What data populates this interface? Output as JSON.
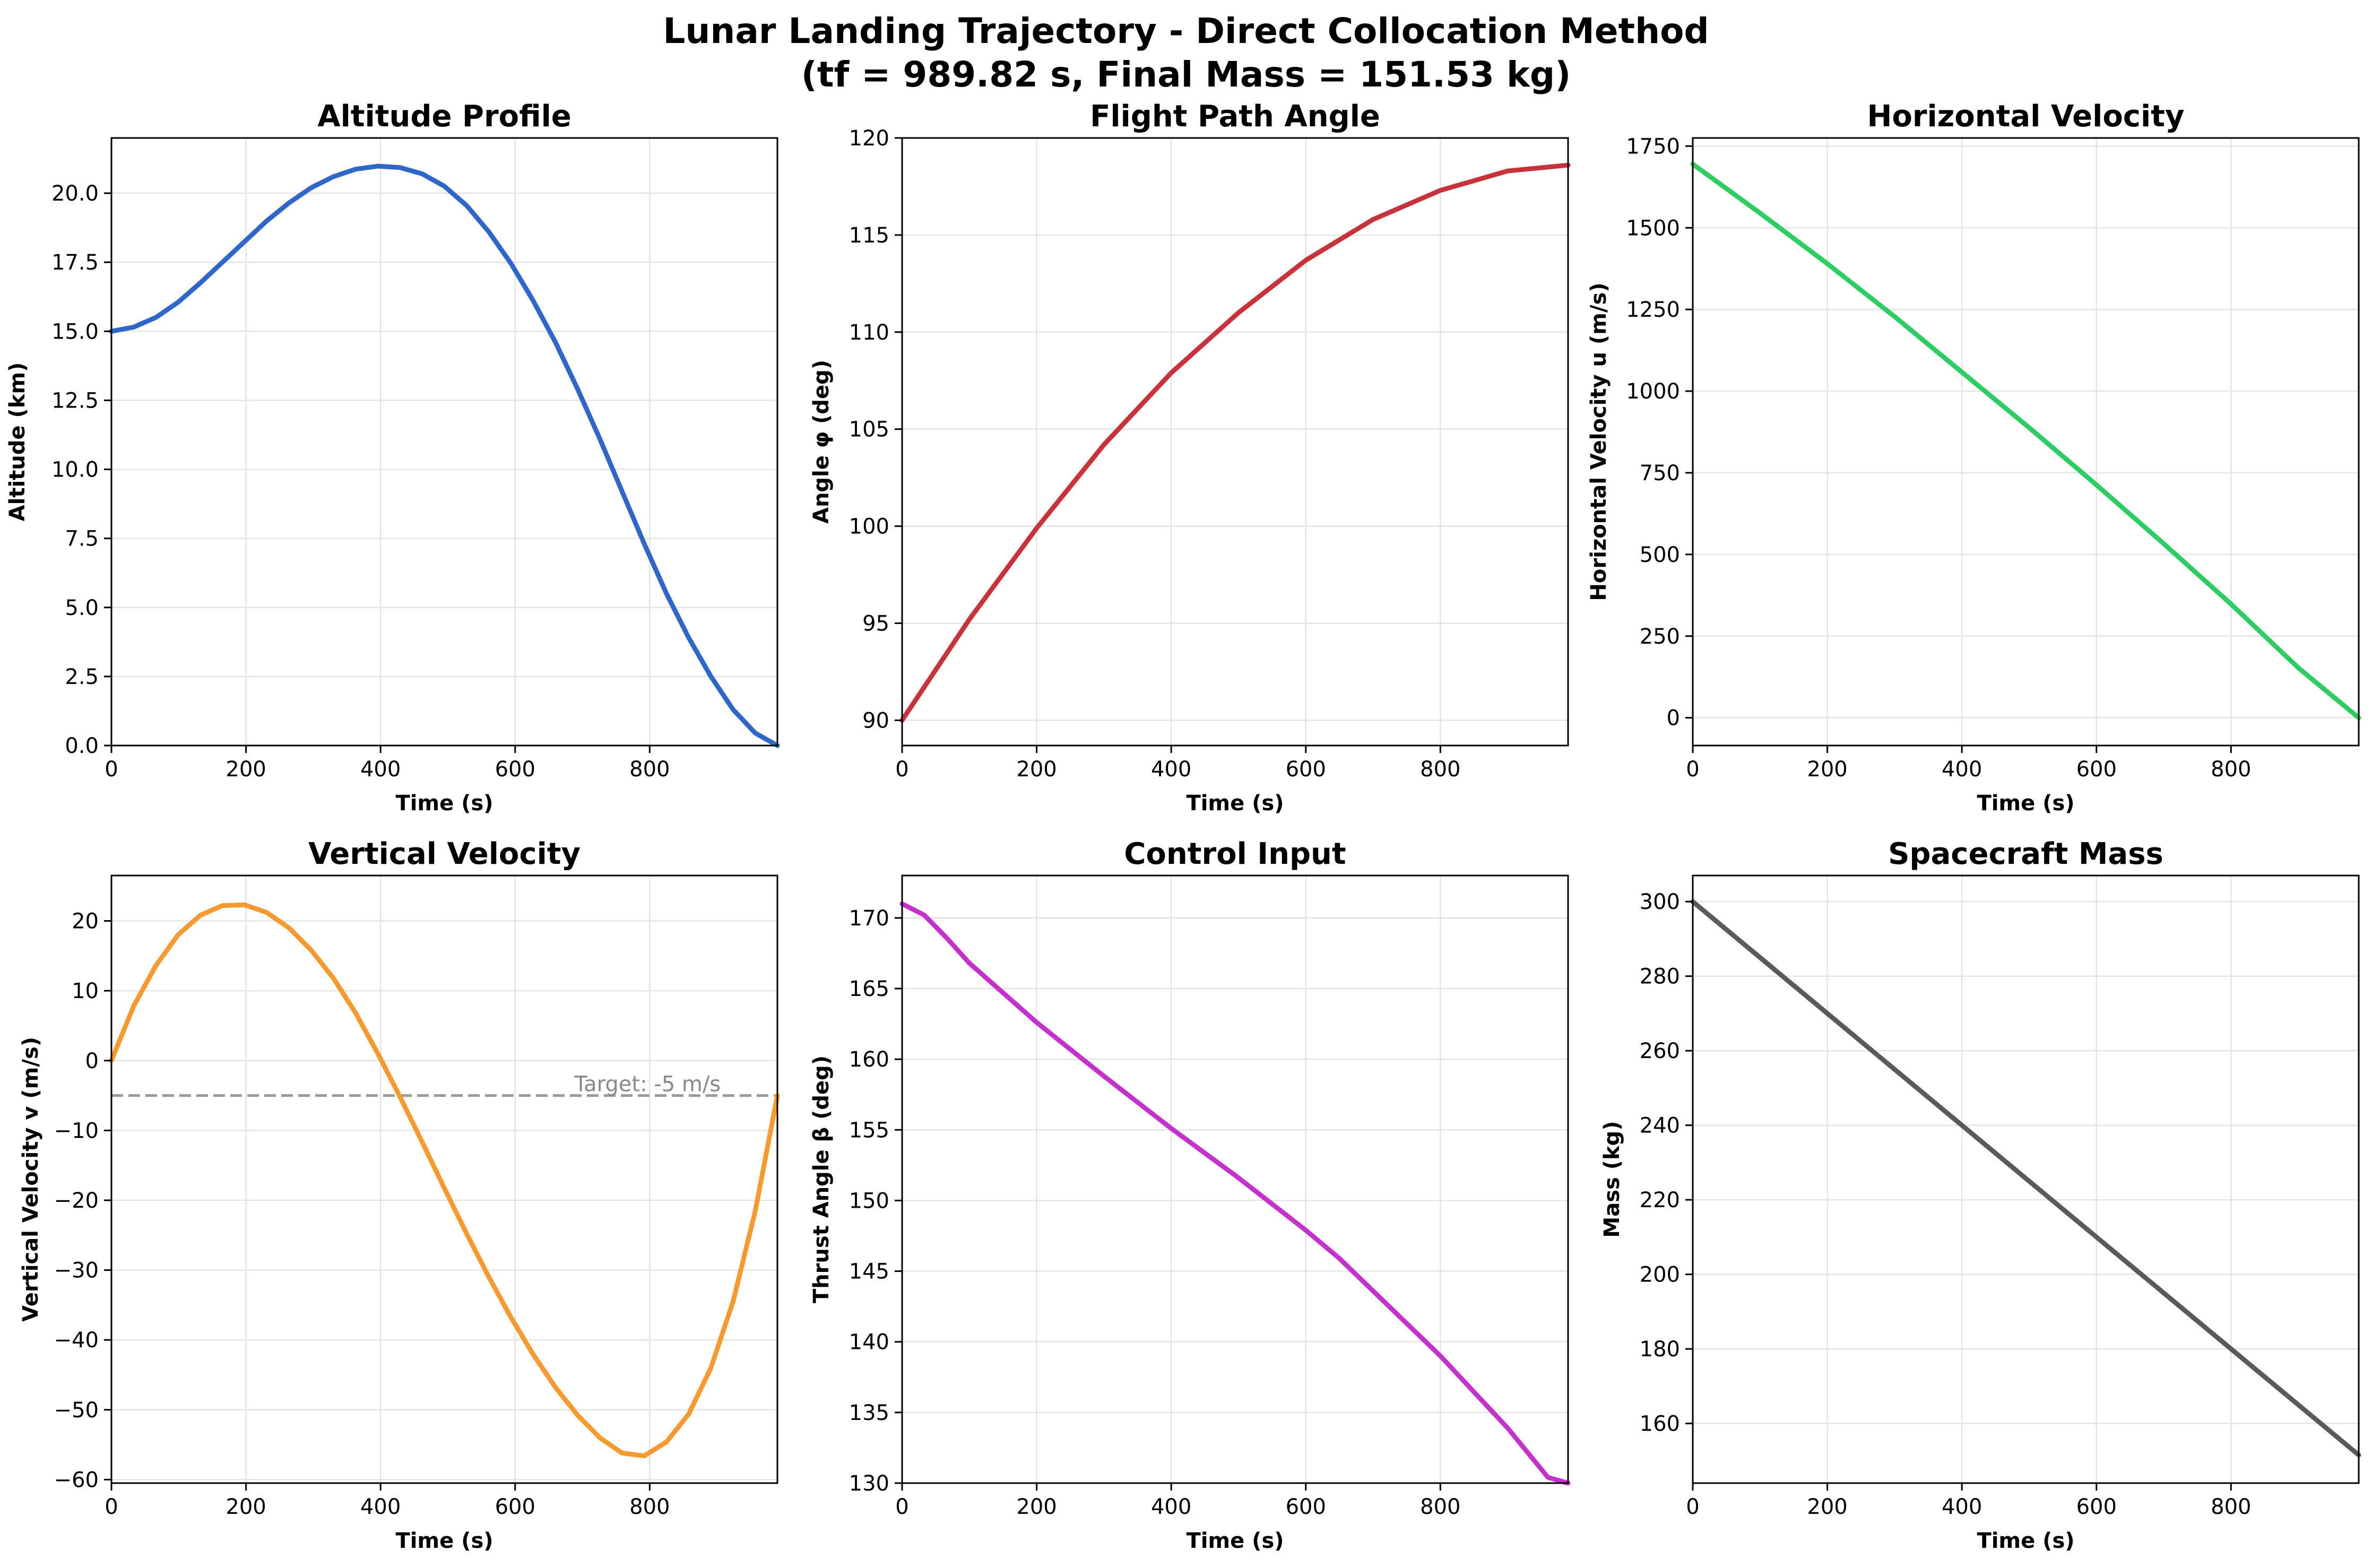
{
  "figure": {
    "title_line1": "Lunar Landing Trajectory - Direct Collocation Method",
    "title_line2": "(tf = 989.82 s, Final Mass = 151.53 kg)"
  },
  "chart_data": [
    {
      "id": "altitude",
      "type": "line",
      "title": "Altitude Profile",
      "xlabel": "Time (s)",
      "ylabel": "Altitude (km)",
      "xlim": [
        0,
        989.82
      ],
      "ylim": [
        0,
        22
      ],
      "xticks": [
        0,
        200,
        400,
        600,
        800
      ],
      "xtick_labels": [
        "0",
        "200",
        "400",
        "600",
        "800"
      ],
      "yticks": [
        0,
        2.5,
        5,
        7.5,
        10,
        12.5,
        15,
        17.5,
        20
      ],
      "ytick_labels": [
        "0.0",
        "2.5",
        "5.0",
        "7.5",
        "10.0",
        "12.5",
        "15.0",
        "17.5",
        "20.0"
      ],
      "grid": true,
      "color": "#3066c8",
      "x": [
        0,
        33,
        66,
        99,
        132,
        165,
        198,
        231,
        264,
        297,
        330,
        363,
        396,
        429,
        462,
        495,
        528,
        561,
        594,
        627,
        660,
        693,
        726,
        759,
        792,
        825,
        858,
        891,
        924,
        957,
        989.82
      ],
      "y": [
        15.0,
        15.15,
        15.5,
        16.05,
        16.75,
        17.5,
        18.25,
        19.0,
        19.65,
        20.2,
        20.6,
        20.87,
        20.98,
        20.93,
        20.7,
        20.25,
        19.55,
        18.6,
        17.45,
        16.1,
        14.6,
        12.9,
        11.1,
        9.2,
        7.3,
        5.5,
        3.9,
        2.5,
        1.3,
        0.45,
        0.0
      ]
    },
    {
      "id": "flight-path-angle",
      "type": "line",
      "title": "Flight Path Angle",
      "xlabel": "Time (s)",
      "ylabel": "Angle φ (deg)",
      "xlim": [
        0,
        989.82
      ],
      "ylim": [
        88.7,
        120
      ],
      "xticks": [
        0,
        200,
        400,
        600,
        800
      ],
      "xtick_labels": [
        "0",
        "200",
        "400",
        "600",
        "800"
      ],
      "yticks": [
        90,
        95,
        100,
        105,
        110,
        115,
        120
      ],
      "ytick_labels": [
        "90",
        "95",
        "100",
        "105",
        "110",
        "115",
        "120"
      ],
      "grid": true,
      "color": "#c8323a",
      "x": [
        0,
        100,
        200,
        300,
        400,
        500,
        600,
        700,
        800,
        900,
        989.82
      ],
      "y": [
        90.0,
        95.2,
        99.9,
        104.2,
        107.9,
        111.0,
        113.7,
        115.8,
        117.3,
        118.3,
        118.6
      ]
    },
    {
      "id": "horizontal-velocity",
      "type": "line",
      "title": "Horizontal Velocity",
      "xlabel": "Time (s)",
      "ylabel": "Horizontal Velocity u (m/s)",
      "xlim": [
        0,
        989.82
      ],
      "ylim": [
        -85,
        1775
      ],
      "xticks": [
        0,
        200,
        400,
        600,
        800
      ],
      "xtick_labels": [
        "0",
        "200",
        "400",
        "600",
        "800"
      ],
      "yticks": [
        0,
        250,
        500,
        750,
        1000,
        1250,
        1500,
        1750
      ],
      "ytick_labels": [
        "0",
        "250",
        "500",
        "750",
        "1000",
        "1250",
        "1500",
        "1750"
      ],
      "grid": true,
      "color": "#2ecc62",
      "x": [
        0,
        100,
        200,
        300,
        400,
        500,
        600,
        700,
        800,
        900,
        989.82
      ],
      "y": [
        1695,
        1545,
        1390,
        1228,
        1058,
        888,
        713,
        533,
        348,
        153,
        0
      ]
    },
    {
      "id": "vertical-velocity",
      "type": "line",
      "title": "Vertical Velocity",
      "xlabel": "Time (s)",
      "ylabel": "Vertical Velocity v (m/s)",
      "xlim": [
        0,
        989.82
      ],
      "ylim": [
        -60.5,
        26.5
      ],
      "xticks": [
        0,
        200,
        400,
        600,
        800
      ],
      "xtick_labels": [
        "0",
        "200",
        "400",
        "600",
        "800"
      ],
      "yticks": [
        -60,
        -50,
        -40,
        -30,
        -20,
        -10,
        0,
        10,
        20
      ],
      "ytick_labels": [
        "−60",
        "−50",
        "−40",
        "−30",
        "−20",
        "−10",
        "0",
        "10",
        "20"
      ],
      "grid": true,
      "color": "#f59a30",
      "x": [
        0,
        33,
        66,
        99,
        132,
        165,
        198,
        231,
        264,
        297,
        330,
        363,
        396,
        429,
        462,
        495,
        528,
        561,
        594,
        627,
        660,
        693,
        726,
        759,
        792,
        825,
        858,
        891,
        924,
        957,
        989.82
      ],
      "y": [
        0.0,
        7.8,
        13.6,
        18.0,
        20.8,
        22.2,
        22.3,
        21.2,
        19.0,
        15.8,
        11.8,
        6.8,
        1.0,
        -5.2,
        -11.7,
        -18.3,
        -24.8,
        -31.0,
        -36.8,
        -42.1,
        -46.8,
        -50.8,
        -54.0,
        -56.2,
        -56.6,
        -54.6,
        -50.6,
        -44.0,
        -34.5,
        -21.5,
        -5.0
      ],
      "reference_line": {
        "y": -5,
        "color": "#999999",
        "label": "Target: -5 m/s",
        "label_x": 688
      }
    },
    {
      "id": "control-input",
      "type": "line",
      "title": "Control Input",
      "xlabel": "Time (s)",
      "ylabel": "Thrust Angle β (deg)",
      "xlim": [
        0,
        989.82
      ],
      "ylim": [
        130,
        173
      ],
      "xticks": [
        0,
        200,
        400,
        600,
        800
      ],
      "xtick_labels": [
        "0",
        "200",
        "400",
        "600",
        "800"
      ],
      "yticks": [
        130,
        135,
        140,
        145,
        150,
        155,
        160,
        165,
        170
      ],
      "ytick_labels": [
        "130",
        "135",
        "140",
        "145",
        "150",
        "155",
        "160",
        "165",
        "170"
      ],
      "grid": true,
      "color": "#c432cc",
      "x": [
        0,
        33,
        66,
        100,
        200,
        300,
        400,
        500,
        600,
        650,
        700,
        800,
        900,
        960,
        989.82
      ],
      "y": [
        171.0,
        170.2,
        168.6,
        166.8,
        162.6,
        158.8,
        155.1,
        151.6,
        147.9,
        145.9,
        143.6,
        139.0,
        133.9,
        130.4,
        130.0
      ]
    },
    {
      "id": "spacecraft-mass",
      "type": "line",
      "title": "Spacecraft Mass",
      "xlabel": "Time (s)",
      "ylabel": "Mass (kg)",
      "xlim": [
        0,
        989.82
      ],
      "ylim": [
        144,
        307
      ],
      "xticks": [
        0,
        200,
        400,
        600,
        800
      ],
      "xtick_labels": [
        "0",
        "200",
        "400",
        "600",
        "800"
      ],
      "yticks": [
        160,
        180,
        200,
        220,
        240,
        260,
        280,
        300
      ],
      "ytick_labels": [
        "160",
        "180",
        "200",
        "220",
        "240",
        "260",
        "280",
        "300"
      ],
      "grid": true,
      "color": "#5a5a5a",
      "x": [
        0,
        989.82
      ],
      "y": [
        300.0,
        151.53
      ]
    }
  ]
}
